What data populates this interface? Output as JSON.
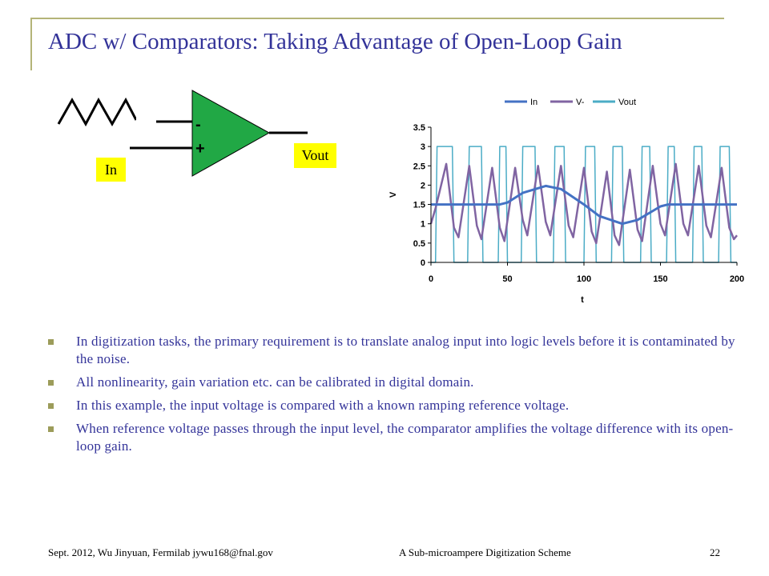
{
  "slide": {
    "title": "ADC w/ Comparators: Taking Advantage of Open-Loop Gain",
    "colors": {
      "title": "#333399",
      "rule": "#b4b478",
      "bullet": "#9c9c5a",
      "opamp": "#21a845",
      "label_bg": "#ffff00"
    }
  },
  "diagram": {
    "minus_sign": "-",
    "plus_sign": "+",
    "in_label": "In",
    "vout_label": "Vout"
  },
  "chart_data": {
    "type": "line",
    "title": "",
    "xlabel": "t",
    "ylabel": "V",
    "xlim": [
      0,
      200
    ],
    "ylim": [
      0,
      3.5
    ],
    "xticks": [
      0,
      50,
      100,
      150,
      200
    ],
    "yticks": [
      0,
      0.5,
      1,
      1.5,
      2,
      2.5,
      3,
      3.5
    ],
    "grid": false,
    "legend_position": "top",
    "series": [
      {
        "name": "In",
        "color": "#4472c4",
        "x": [
          0,
          45,
          50,
          60,
          75,
          85,
          100,
          110,
          125,
          135,
          150,
          155,
          160,
          200
        ],
        "y": [
          1.5,
          1.5,
          1.55,
          1.8,
          1.98,
          1.9,
          1.5,
          1.2,
          1.0,
          1.1,
          1.45,
          1.5,
          1.5,
          1.5
        ]
      },
      {
        "name": "V-",
        "color": "#8064a2",
        "x": [
          0,
          3,
          10,
          15,
          18,
          25,
          30,
          33,
          40,
          45,
          48,
          55,
          60,
          63,
          70,
          75,
          78,
          85,
          90,
          93,
          100,
          105,
          108,
          115,
          120,
          123,
          130,
          135,
          138,
          145,
          150,
          153,
          160,
          165,
          168,
          175,
          180,
          183,
          190,
          195,
          198,
          200
        ],
        "y": [
          1.0,
          1.4,
          2.55,
          0.9,
          0.65,
          2.5,
          0.95,
          0.6,
          2.45,
          0.9,
          0.55,
          2.45,
          1.1,
          0.7,
          2.5,
          1.05,
          0.7,
          2.5,
          0.95,
          0.65,
          2.45,
          0.8,
          0.5,
          2.35,
          0.7,
          0.45,
          2.4,
          0.85,
          0.55,
          2.5,
          1.0,
          0.7,
          2.55,
          1.0,
          0.7,
          2.5,
          0.95,
          0.65,
          2.45,
          0.9,
          0.6,
          0.7
        ]
      },
      {
        "name": "Vout",
        "color": "#4bacc6",
        "x": [
          0,
          3,
          4,
          14,
          15,
          24,
          25,
          33,
          34,
          44,
          45,
          49,
          50,
          59,
          60,
          68,
          69,
          80,
          81,
          87,
          88,
          100,
          101,
          107,
          108,
          118,
          119,
          125,
          126,
          137,
          138,
          143,
          144,
          154,
          155,
          159,
          160,
          171,
          172,
          177,
          178,
          188,
          189,
          195,
          196,
          200
        ],
        "y": [
          0,
          0,
          3,
          3,
          0,
          0,
          3,
          3,
          0,
          0,
          3,
          3,
          0,
          0,
          3,
          3,
          0,
          0,
          3,
          3,
          0,
          0,
          3,
          3,
          0,
          0,
          3,
          3,
          0,
          0,
          3,
          3,
          0,
          0,
          3,
          3,
          0,
          0,
          3,
          3,
          0,
          0,
          3,
          3,
          0,
          0
        ]
      }
    ]
  },
  "bullets": [
    "In digitization tasks, the primary requirement is to translate analog input into logic levels before it is contaminated by the noise.",
    "All nonlinearity, gain variation etc. can be calibrated in digital domain.",
    "In this example, the input voltage is compared with a known ramping reference voltage.",
    "When reference voltage passes through the input level, the comparator amplifies the voltage difference with its open-loop gain."
  ],
  "footer": {
    "left": "Sept. 2012, Wu Jinyuan, Fermilab jywu168@fnal.gov",
    "center": "A Sub-microampere Digitization Scheme",
    "page_number": "22"
  }
}
